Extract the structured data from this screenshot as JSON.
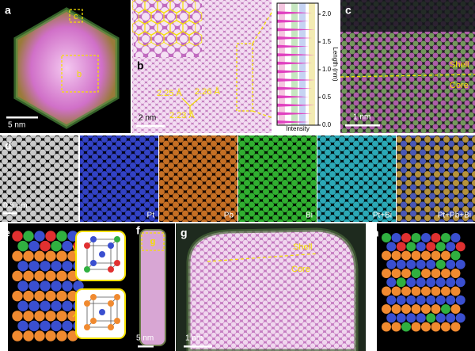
{
  "panels": {
    "a": {
      "label": "a",
      "marker_c": "c",
      "marker_b": "b",
      "scale": "5 nm"
    },
    "b": {
      "label": "b",
      "scale": "2 nm",
      "spacings": [
        "2.25 Å",
        "2.26 Å",
        "2.23 Å"
      ],
      "profile": {
        "ylabel": "Length (nm)",
        "xlabel": "Intensity",
        "ylim": [
          0,
          2.2
        ],
        "yticks": [
          {
            "value": 0,
            "label": "0.0"
          },
          {
            "value": 0.5,
            "label": "0.5"
          },
          {
            "value": 1,
            "label": "1.0"
          },
          {
            "value": 1.5,
            "label": "1.5"
          },
          {
            "value": 2,
            "label": "2.0"
          }
        ]
      }
    },
    "c": {
      "label": "c",
      "scale": "1 nm",
      "shell": "Shell",
      "core": "Core"
    },
    "d": {
      "label": "d",
      "scale": "0.5 nm",
      "channels": [
        "Pt",
        "Pb",
        "Bi",
        "Pt+Bi",
        "Pt+Pb+Bi"
      ]
    },
    "e": {
      "label": "e"
    },
    "f": {
      "label": "f",
      "marker": "g",
      "scale": "5 nm"
    },
    "g": {
      "label": "g",
      "scale": "1 nm",
      "shell": "Shell",
      "core": "Core"
    },
    "h": {
      "label": "h"
    }
  }
}
